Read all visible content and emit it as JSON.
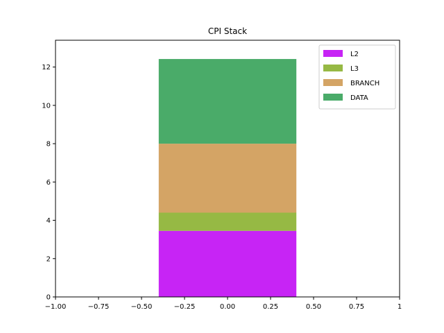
{
  "chart_data": {
    "type": "bar",
    "stacked": true,
    "title": "CPI Stack",
    "xlabel": "",
    "ylabel": "",
    "bar_center": 0.0,
    "bar_width": 0.8,
    "xlim": [
      -1.0,
      1.0
    ],
    "ylim": [
      0,
      13.4
    ],
    "x_ticks": [
      -1.0,
      -0.75,
      -0.5,
      -0.25,
      0.0,
      0.25,
      0.5,
      0.75,
      1.0
    ],
    "x_tick_labels": [
      "−1.00",
      "−0.75",
      "−0.50",
      "−0.25",
      "0.00",
      "0.25",
      "0.50",
      "0.75",
      "1"
    ],
    "y_ticks": [
      0,
      2,
      4,
      6,
      8,
      10,
      12
    ],
    "y_tick_labels": [
      "0",
      "2",
      "4",
      "6",
      "8",
      "10",
      "12"
    ],
    "grid": false,
    "legend_position": "top-right",
    "series": [
      {
        "name": "L2",
        "value": 3.45,
        "color": "#c724f5"
      },
      {
        "name": "L3",
        "value": 0.95,
        "color": "#96b944"
      },
      {
        "name": "BRANCH",
        "value": 3.6,
        "color": "#d4a465"
      },
      {
        "name": "DATA",
        "value": 4.42,
        "color": "#4aab69"
      }
    ]
  }
}
